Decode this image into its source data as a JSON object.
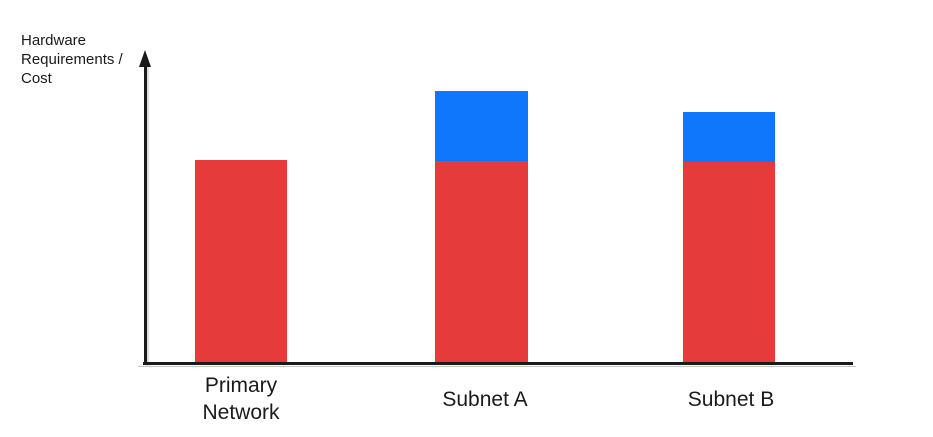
{
  "page": {
    "background": "#FFFFFF"
  },
  "y_axis": {
    "label_lines": [
      "Hardware",
      "Requirements /",
      "Cost"
    ]
  },
  "colors": {
    "bar_red": "#E63B3B",
    "bar_blue": "#0E77FC",
    "axis": "#1A1A1A",
    "text": "#1A1A1A"
  },
  "chart_data": {
    "type": "bar",
    "stacked": true,
    "title": "",
    "xlabel": "",
    "ylabel": "Hardware Requirements / Cost",
    "categories": [
      "Primary Network",
      "Subnet A",
      "Subnet B"
    ],
    "series": [
      {
        "name": "red",
        "color": "#E63B3B",
        "values": [
          202,
          201,
          200
        ]
      },
      {
        "name": "blue",
        "color": "#0E77FC",
        "values": [
          0,
          70,
          50
        ]
      }
    ],
    "value_units": "relative (y-axis has no tick labels)",
    "ylim": [
      0,
      310
    ],
    "grid": "off",
    "legend": "none",
    "axis_arrow": "up-arrow on y-axis"
  }
}
